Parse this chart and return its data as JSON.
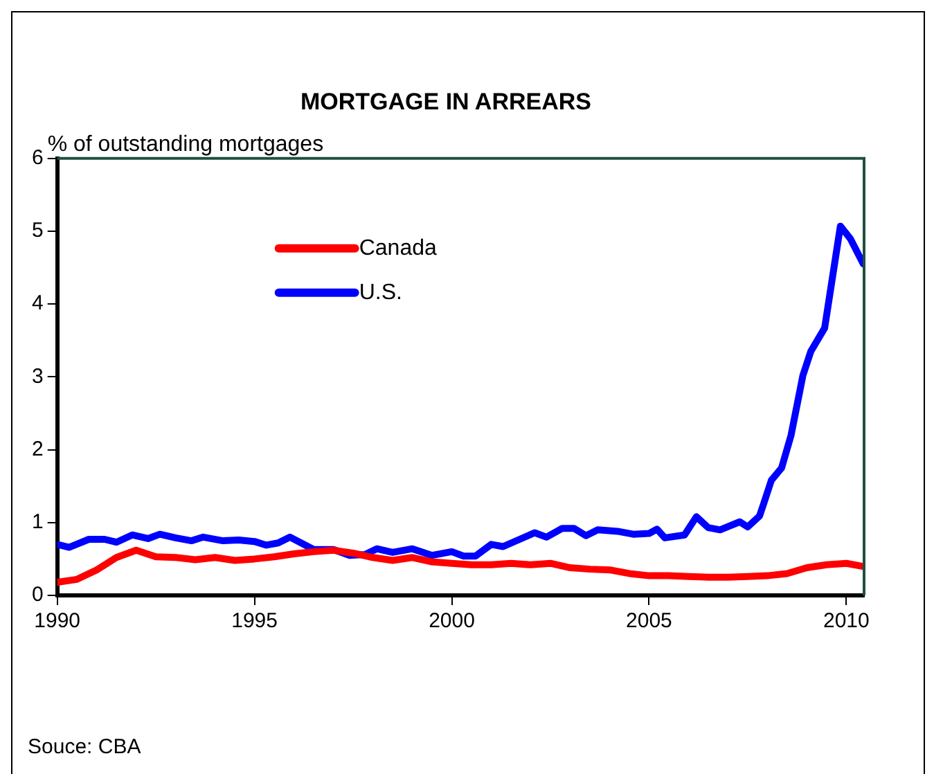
{
  "chart_data": {
    "type": "line",
    "title": "MORTGAGE IN ARREARS",
    "ylabel": "% of outstanding mortgages",
    "xlim": [
      1990,
      2010.45
    ],
    "xticks": [
      1990,
      1995,
      2000,
      2005,
      2010
    ],
    "ylim": [
      0,
      6
    ],
    "yticks": [
      0,
      1,
      2,
      3,
      4,
      5,
      6
    ],
    "grid": false,
    "legend": "top left",
    "marker": "none",
    "line_style": "solid",
    "annotations": [
      "Souce: CBA"
    ],
    "series": [
      {
        "name": "Canada",
        "color": "#ff0000",
        "x": [
          1990,
          1990.5,
          1991,
          1991.5,
          1992,
          1992.5,
          1993,
          1993.5,
          1994,
          1994.5,
          1995,
          1995.5,
          1996,
          1996.5,
          1997,
          1997.5,
          1998,
          1998.5,
          1999,
          1999.5,
          2000,
          2000.5,
          2001,
          2001.5,
          2002,
          2002.5,
          2003,
          2003.5,
          2004,
          2004.5,
          2005,
          2005.5,
          2006,
          2006.5,
          2007,
          2007.5,
          2008,
          2008.5,
          2009,
          2009.5,
          2010,
          2010.4
        ],
        "values": [
          0.18,
          0.22,
          0.35,
          0.52,
          0.62,
          0.53,
          0.52,
          0.49,
          0.52,
          0.48,
          0.5,
          0.53,
          0.57,
          0.6,
          0.62,
          0.58,
          0.52,
          0.48,
          0.52,
          0.46,
          0.44,
          0.42,
          0.42,
          0.44,
          0.42,
          0.44,
          0.38,
          0.36,
          0.35,
          0.3,
          0.27,
          0.27,
          0.26,
          0.25,
          0.25,
          0.26,
          0.27,
          0.3,
          0.38,
          0.42,
          0.44,
          0.4
        ]
      },
      {
        "name": "U.S.",
        "color": "#0000ff",
        "x": [
          1990,
          1990.3,
          1990.8,
          1991.2,
          1991.5,
          1991.9,
          1992.3,
          1992.6,
          1993,
          1993.4,
          1993.7,
          1994.2,
          1994.6,
          1995,
          1995.3,
          1995.6,
          1995.9,
          1996.5,
          1997,
          1997.4,
          1997.8,
          1998.1,
          1998.5,
          1999,
          1999.5,
          2000,
          2000.3,
          2000.6,
          2001,
          2001.3,
          2002.1,
          2002.4,
          2002.8,
          2003.1,
          2003.4,
          2003.7,
          2004.2,
          2004.6,
          2005,
          2005.2,
          2005.4,
          2005.9,
          2006.2,
          2006.5,
          2006.8,
          2007.3,
          2007.5,
          2007.8,
          2007.9,
          2008.1,
          2008.36,
          2008.6,
          2008.9,
          2009.1,
          2009.45,
          2009.85,
          2010.1,
          2010.43
        ],
        "values": [
          0.7,
          0.66,
          0.77,
          0.77,
          0.73,
          0.83,
          0.78,
          0.84,
          0.79,
          0.75,
          0.8,
          0.75,
          0.76,
          0.74,
          0.69,
          0.72,
          0.8,
          0.63,
          0.63,
          0.55,
          0.56,
          0.64,
          0.59,
          0.64,
          0.55,
          0.6,
          0.54,
          0.54,
          0.7,
          0.67,
          0.86,
          0.8,
          0.92,
          0.92,
          0.82,
          0.9,
          0.88,
          0.84,
          0.85,
          0.91,
          0.79,
          0.83,
          1.08,
          0.93,
          0.9,
          1.01,
          0.94,
          1.09,
          1.25,
          1.58,
          1.75,
          2.2,
          3.02,
          3.35,
          3.67,
          5.07,
          4.9,
          4.55
        ]
      }
    ]
  }
}
